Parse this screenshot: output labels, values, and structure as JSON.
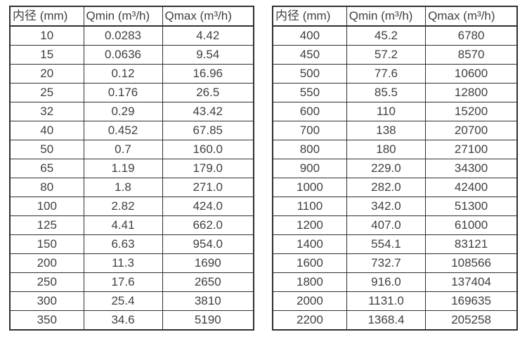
{
  "colors": {
    "background": "#ffffff",
    "border": "#2f2f2f",
    "text": "#404040"
  },
  "tables": [
    {
      "name": "small-diameter-flow-ranges",
      "headers": [
        "内径 (mm)",
        "Qmin (m³/h)",
        "Qmax (m³/h)"
      ],
      "rows": [
        [
          "10",
          "0.0283",
          "4.42"
        ],
        [
          "15",
          "0.0636",
          "9.54"
        ],
        [
          "20",
          "0.12",
          "16.96"
        ],
        [
          "25",
          "0.176",
          "26.5"
        ],
        [
          "32",
          "0.29",
          "43.42"
        ],
        [
          "40",
          "0.452",
          "67.85"
        ],
        [
          "50",
          "0.7",
          "160.0"
        ],
        [
          "65",
          "1.19",
          "179.0"
        ],
        [
          "80",
          "1.8",
          "271.0"
        ],
        [
          "100",
          "2.82",
          "424.0"
        ],
        [
          "125",
          "4.41",
          "662.0"
        ],
        [
          "150",
          "6.63",
          "954.0"
        ],
        [
          "200",
          "11.3",
          "1690"
        ],
        [
          "250",
          "17.6",
          "2650"
        ],
        [
          "300",
          "25.4",
          "3810"
        ],
        [
          "350",
          "34.6",
          "5190"
        ]
      ]
    },
    {
      "name": "large-diameter-flow-ranges",
      "headers": [
        "内径 (mm)",
        "Qmin (m³/h)",
        "Qmax (m³/h)"
      ],
      "rows": [
        [
          "400",
          "45.2",
          "6780"
        ],
        [
          "450",
          "57.2",
          "8570"
        ],
        [
          "500",
          "77.6",
          "10600"
        ],
        [
          "550",
          "85.5",
          "12800"
        ],
        [
          "600",
          "110",
          "15200"
        ],
        [
          "700",
          "138",
          "20700"
        ],
        [
          "800",
          "180",
          "27100"
        ],
        [
          "900",
          "229.0",
          "34300"
        ],
        [
          "1000",
          "282.0",
          "42400"
        ],
        [
          "1100",
          "342.0",
          "51300"
        ],
        [
          "1200",
          "407.0",
          "61000"
        ],
        [
          "1400",
          "554.1",
          "83121"
        ],
        [
          "1600",
          "732.7",
          "108566"
        ],
        [
          "1800",
          "916.0",
          "137404"
        ],
        [
          "2000",
          "1131.0",
          "169635"
        ],
        [
          "2200",
          "1368.4",
          "205258"
        ]
      ]
    }
  ]
}
